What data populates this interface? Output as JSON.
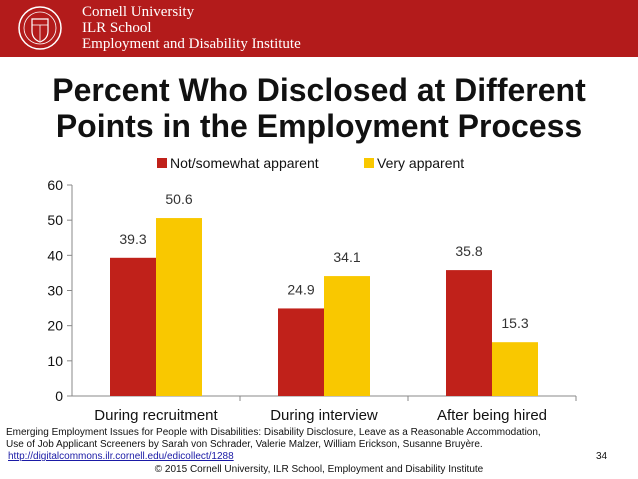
{
  "header": {
    "line1": "Cornell University",
    "line2": "ILR School",
    "line3": "Employment and Disability Institute",
    "brand_color": "#b31b1b"
  },
  "chart_data": {
    "type": "bar",
    "title": "Percent Who Disclosed at Different Points in the Employment Process",
    "title_line1": "Percent Who Disclosed at Different",
    "title_line2": "Points in the Employment Process",
    "categories": [
      "During recruitment",
      "During interview",
      "After being hired"
    ],
    "series": [
      {
        "name": "Not/somewhat apparent",
        "color": "#c0211a",
        "values": [
          39.3,
          24.9,
          35.8
        ]
      },
      {
        "name": "Very apparent",
        "color": "#f9c800",
        "values": [
          50.6,
          34.1,
          15.3
        ]
      }
    ],
    "ylim": [
      0,
      60
    ],
    "yticks": [
      0,
      10,
      20,
      30,
      40,
      50,
      60
    ],
    "legend_position": "top-center",
    "grid": false
  },
  "citation": {
    "line1": "Emerging Employment Issues for People with Disabilities: Disability Disclosure, Leave as a Reasonable Accommodation,",
    "line2": "Use of Job Applicant Screeners by Sarah von Schrader, Valerie Malzer, William Erickson, Susanne Bruyère.",
    "link": "http://digitalcommons.ilr.cornell.edu/edicollect/1288"
  },
  "page_number": "34",
  "copyright": "© 2015 Cornell University, ILR School, Employment and Disability Institute"
}
